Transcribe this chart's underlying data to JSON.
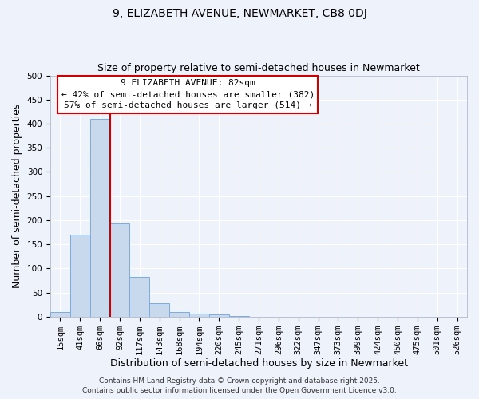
{
  "title": "9, ELIZABETH AVENUE, NEWMARKET, CB8 0DJ",
  "subtitle": "Size of property relative to semi-detached houses in Newmarket",
  "xlabel": "Distribution of semi-detached houses by size in Newmarket",
  "ylabel": "Number of semi-detached properties",
  "bin_labels": [
    "15sqm",
    "41sqm",
    "66sqm",
    "92sqm",
    "117sqm",
    "143sqm",
    "168sqm",
    "194sqm",
    "220sqm",
    "245sqm",
    "271sqm",
    "296sqm",
    "322sqm",
    "347sqm",
    "373sqm",
    "399sqm",
    "424sqm",
    "450sqm",
    "475sqm",
    "501sqm",
    "526sqm"
  ],
  "bin_values": [
    10,
    170,
    410,
    193,
    82,
    28,
    9,
    6,
    4,
    1,
    0,
    0,
    0,
    0,
    0,
    0,
    0,
    0,
    0,
    0,
    0
  ],
  "bar_color": "#c8d9ee",
  "bar_edge_color": "#7aabe0",
  "vline_x": 3.0,
  "vline_color": "#cc0000",
  "ylim": [
    0,
    500
  ],
  "yticks": [
    0,
    50,
    100,
    150,
    200,
    250,
    300,
    350,
    400,
    450,
    500
  ],
  "annotation_title": "9 ELIZABETH AVENUE: 82sqm",
  "annotation_line1": "← 42% of semi-detached houses are smaller (382)",
  "annotation_line2": "57% of semi-detached houses are larger (514) →",
  "annotation_box_color": "#ffffff",
  "annotation_box_edge": "#cc0000",
  "footer_line1": "Contains HM Land Registry data © Crown copyright and database right 2025.",
  "footer_line2": "Contains public sector information licensed under the Open Government Licence v3.0.",
  "background_color": "#eef2fb",
  "grid_color": "#ffffff",
  "title_fontsize": 10,
  "subtitle_fontsize": 9,
  "axis_label_fontsize": 9,
  "tick_fontsize": 7.5,
  "annotation_fontsize": 8,
  "footer_fontsize": 6.5
}
